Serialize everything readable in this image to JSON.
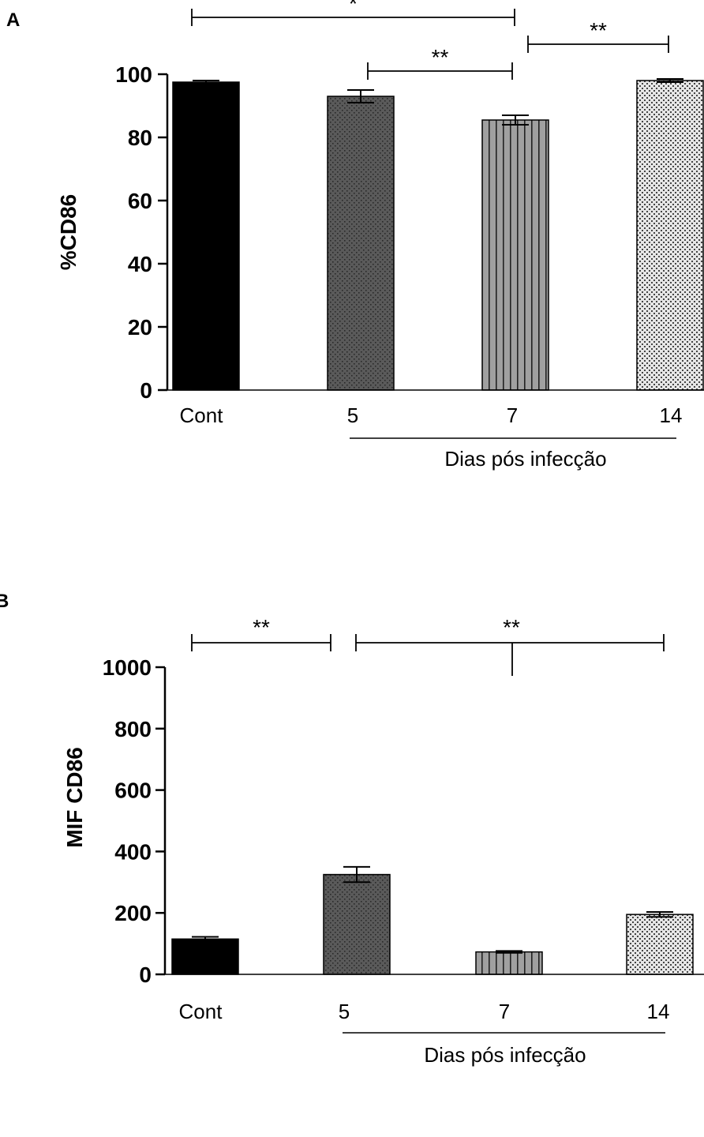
{
  "panels": [
    {
      "letter": "A"
    },
    {
      "letter": "B"
    }
  ],
  "colors": {
    "axis": "#000000",
    "bar_outline": "#000000",
    "cont": "#000000",
    "d5": "#555555",
    "d7": "#9a9a9a",
    "d14": "#dcdcdc"
  },
  "chart_data": [
    {
      "type": "bar",
      "title": "",
      "xlabel": "",
      "ylabel": "%CD86",
      "categories": [
        "Cont",
        "5",
        "7",
        "14"
      ],
      "values": [
        97.5,
        93,
        85.5,
        98
      ],
      "errors": [
        0.5,
        2,
        1.5,
        0.5
      ],
      "fill_patterns": [
        "solid",
        "dotted",
        "vertical-stripes",
        "dense-dots"
      ],
      "ylim": [
        0,
        100
      ],
      "yticks": [
        "0",
        "20",
        "40",
        "60",
        "80",
        "100"
      ],
      "group_label": "Dias pós infecção",
      "grid": false,
      "significance": [
        {
          "from": "Cont",
          "to": "7",
          "label": "*"
        },
        {
          "from": "5",
          "to": "7",
          "label": "**"
        },
        {
          "from": "7",
          "to": "14",
          "label": "**"
        }
      ]
    },
    {
      "type": "bar",
      "title": "",
      "xlabel": "",
      "ylabel": "MIF CD86",
      "categories": [
        "Cont",
        "5",
        "7",
        "14"
      ],
      "values": [
        115,
        325,
        73,
        195
      ],
      "errors": [
        7,
        25,
        3,
        8
      ],
      "fill_patterns": [
        "solid",
        "dotted",
        "vertical-stripes",
        "dense-dots"
      ],
      "ylim": [
        0,
        1000
      ],
      "yticks": [
        "0",
        "200",
        "400",
        "600",
        "800",
        "1000"
      ],
      "group_label": "Dias pós infecção",
      "grid": false,
      "significance": [
        {
          "from": "Cont",
          "to": "5",
          "label": "**"
        },
        {
          "from": "5",
          "to": "14",
          "label": "**",
          "mid_tick": "7"
        }
      ]
    }
  ]
}
